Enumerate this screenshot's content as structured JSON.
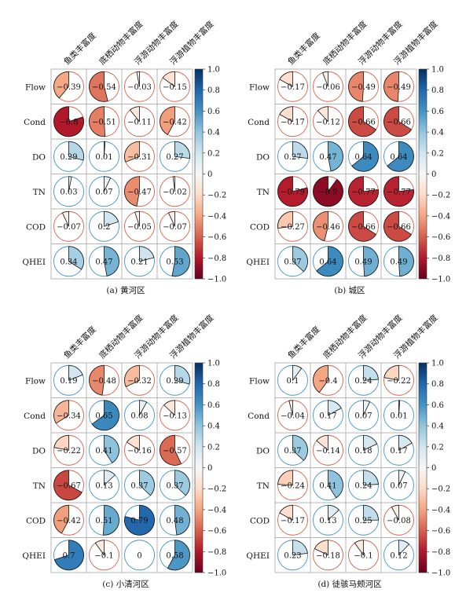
{
  "colorbar_ticks": [
    "1.0",
    "0.8",
    "0.6",
    "0.4",
    "0.2",
    "0",
    "−0.2",
    "−0.4",
    "−0.6",
    "−0.8",
    "−1.0"
  ],
  "colors": {
    "neg": "#67001f",
    "pos": "#053061",
    "mid": "#f7f7f7",
    "grid": "#b5b5b5"
  },
  "chart_data": [
    {
      "type": "heatmap",
      "caption": "(a) 黄河区",
      "columns": [
        "鱼类丰富度",
        "底栖动物丰富度",
        "浮游动物丰富度",
        "浮游植物丰富度"
      ],
      "rows": [
        "Flow",
        "Cond",
        "DO",
        "TN",
        "COD",
        "QHEI"
      ],
      "values": [
        [
          -0.39,
          -0.54,
          -0.03,
          -0.15
        ],
        [
          -0.8,
          -0.51,
          -0.11,
          -0.42
        ],
        [
          0.29,
          0.01,
          -0.31,
          0.27
        ],
        [
          0.03,
          0.07,
          -0.47,
          -0.02
        ],
        [
          -0.07,
          0.2,
          -0.05,
          -0.07
        ],
        [
          0.34,
          0.47,
          0.21,
          0.53
        ]
      ],
      "labels": [
        [
          "−0.39",
          "−0.54",
          "−0.03",
          "−0.15"
        ],
        [
          "−0.8",
          "−0.51",
          "−0.11",
          "−0.42"
        ],
        [
          "0.29",
          "0.01",
          "−0.31",
          "0.27"
        ],
        [
          "0.03",
          "0.07",
          "−0.47",
          "−0.02"
        ],
        [
          "−0.07",
          "0.2",
          "−0.05",
          "−0.07"
        ],
        [
          "0.34",
          "0.47",
          "0.21",
          "0.53"
        ]
      ],
      "vlim": [
        -1.0,
        1.0
      ]
    },
    {
      "type": "heatmap",
      "caption": "(b) 城区",
      "columns": [
        "鱼类丰富度",
        "底栖动物丰富度",
        "浮游动物丰富度",
        "浮游植物丰富度"
      ],
      "rows": [
        "Flow",
        "Cond",
        "DO",
        "TN",
        "COD",
        "QHEI"
      ],
      "values": [
        [
          -0.17,
          -0.06,
          -0.49,
          -0.49
        ],
        [
          -0.17,
          -0.12,
          -0.66,
          -0.66
        ],
        [
          0.27,
          0.47,
          0.64,
          0.64
        ],
        [
          -0.79,
          -0.9,
          -0.77,
          -0.77
        ],
        [
          -0.27,
          -0.46,
          -0.66,
          -0.66
        ],
        [
          0.37,
          0.64,
          0.49,
          0.49
        ]
      ],
      "labels": [
        [
          "−0.17",
          "−0.06",
          "−0.49",
          "−0.49"
        ],
        [
          "−0.17",
          "−0.12",
          "−0.66",
          "−0.66"
        ],
        [
          "0.27",
          "0.47",
          "0.64",
          "0.64"
        ],
        [
          "−0.79",
          "−0.9",
          "−0.77",
          "−0.77"
        ],
        [
          "−0.27",
          "−0.46",
          "−0.66",
          "−0.66"
        ],
        [
          "0.37",
          "0.64",
          "0.49",
          "0.49"
        ]
      ],
      "vlim": [
        -1.0,
        1.0
      ]
    },
    {
      "type": "heatmap",
      "caption": "(c) 小清河区",
      "columns": [
        "鱼类丰富度",
        "底栖动物丰富度",
        "浮游动物丰富度",
        "浮游植物丰富度"
      ],
      "rows": [
        "Flow",
        "Cond",
        "DO",
        "TN",
        "COD",
        "QHEI"
      ],
      "values": [
        [
          0.19,
          -0.48,
          -0.32,
          0.29
        ],
        [
          -0.34,
          0.65,
          0.08,
          -0.13
        ],
        [
          -0.22,
          0.41,
          -0.16,
          -0.57
        ],
        [
          -0.67,
          0.13,
          0.37,
          0.37
        ],
        [
          -0.42,
          0.51,
          0.79,
          0.48
        ],
        [
          0.7,
          -0.1,
          0,
          0.58
        ]
      ],
      "labels": [
        [
          "0.19",
          "−0.48",
          "−0.32",
          "0.29"
        ],
        [
          "−0.34",
          "0.65",
          "0.08",
          "−0.13"
        ],
        [
          "−0.22",
          "0.41",
          "−0.16",
          "−0.57"
        ],
        [
          "−0.67",
          "0.13",
          "0.37",
          "0.37"
        ],
        [
          "−0.42",
          "0.51",
          "0.79",
          "0.48"
        ],
        [
          "0.7",
          "−0.1",
          "0",
          "0.58"
        ]
      ],
      "vlim": [
        -1.0,
        1.0
      ]
    },
    {
      "type": "heatmap",
      "caption": "(d) 徒骇马颊河区",
      "columns": [
        "鱼类丰富度",
        "底栖动物丰富度",
        "浮游动物丰富度",
        "浮游植物丰富度"
      ],
      "rows": [
        "Flow",
        "Cond",
        "DO",
        "TN",
        "COD",
        "QHEI"
      ],
      "values": [
        [
          0.1,
          -0.4,
          0.24,
          -0.22
        ],
        [
          -0.04,
          0.17,
          0.07,
          0.01
        ],
        [
          0.37,
          -0.14,
          0.18,
          0.17
        ],
        [
          -0.24,
          0.41,
          0.24,
          0.07
        ],
        [
          -0.17,
          0.13,
          0.25,
          -0.08
        ],
        [
          0.23,
          -0.18,
          -0.1,
          0.12
        ]
      ],
      "labels": [
        [
          "0.1",
          "−0.4",
          "0.24",
          "−0.22"
        ],
        [
          "−0.04",
          "0.17",
          "0.07",
          "0.01"
        ],
        [
          "0.37",
          "−0.14",
          "0.18",
          "0.17"
        ],
        [
          "−0.24",
          "0.41",
          "0.24",
          "0.07"
        ],
        [
          "−0.17",
          "0.13",
          "0.25",
          "−0.08"
        ],
        [
          "0.23",
          "−0.18",
          "−0.1",
          "0.12"
        ]
      ],
      "vlim": [
        -1.0,
        1.0
      ]
    }
  ]
}
